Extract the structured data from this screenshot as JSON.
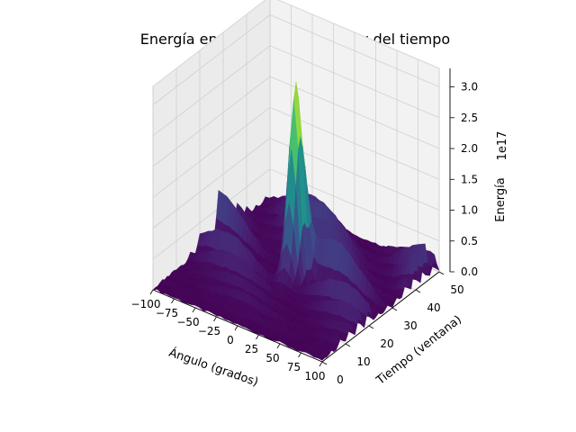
{
  "chart_data": {
    "type": "surface",
    "title": "Energía en función del ángulo y del tiempo",
    "xlabel": "Ángulo (grados)",
    "ylabel": "Tiempo (ventana)",
    "zlabel": "Energía",
    "z_offset_label": "1e17",
    "xlim": [
      -100,
      100
    ],
    "ylim": [
      0,
      50
    ],
    "zlim": [
      0,
      3.3
    ],
    "x_ticks": [
      "−100",
      "−75",
      "−50",
      "−25",
      "0",
      "25",
      "50",
      "75",
      "100"
    ],
    "y_ticks": [
      "0",
      "10",
      "20",
      "30",
      "40",
      "50"
    ],
    "z_ticks": [
      "0.0",
      "0.5",
      "1.0",
      "1.5",
      "2.0",
      "2.5",
      "3.0"
    ],
    "colormap": "viridis",
    "grid": true,
    "peak": {
      "x": 0,
      "y": 25,
      "z": 3.2
    },
    "time_windows": [
      {
        "t": 4,
        "level": 0.15
      },
      {
        "t": 8,
        "level": 0.35
      },
      {
        "t": 12,
        "level": 0.45
      },
      {
        "t": 16,
        "level": 0.7
      },
      {
        "t": 20,
        "level": 0.95
      },
      {
        "t": 24,
        "level": 3.2
      },
      {
        "t": 28,
        "level": 1.4
      },
      {
        "t": 32,
        "level": 1.0
      },
      {
        "t": 36,
        "level": 1.2
      },
      {
        "t": 40,
        "level": 1.35
      },
      {
        "t": 44,
        "level": 1.1
      },
      {
        "t": 48,
        "level": 0.6
      }
    ]
  }
}
